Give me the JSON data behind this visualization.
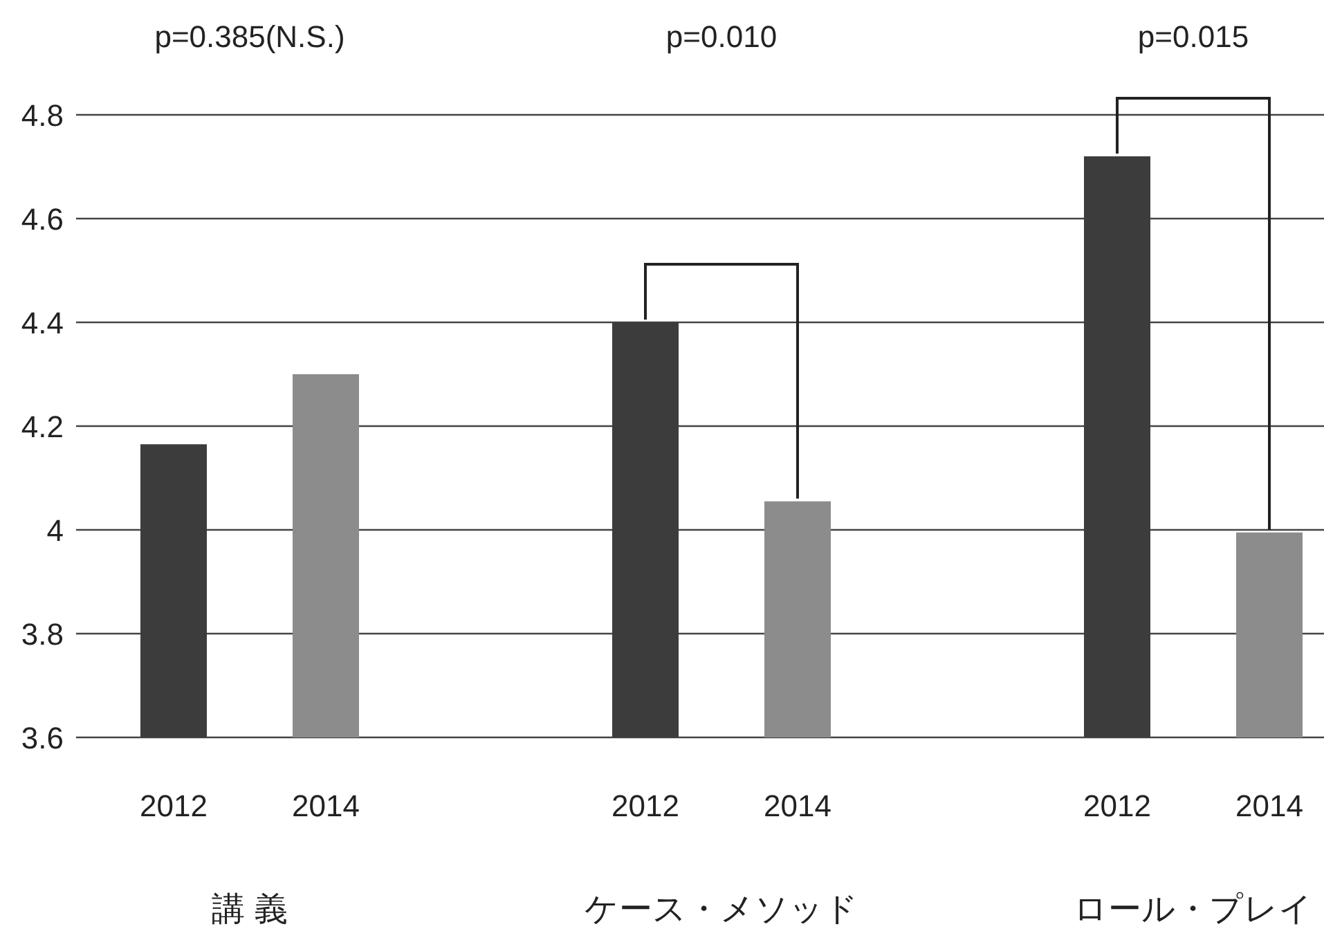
{
  "chart_data": {
    "type": "bar",
    "categories": [
      "講 義",
      "ケース・メソッド",
      "ロール・プレイ"
    ],
    "series": [
      {
        "name": "2012",
        "color": "#3c3c3c",
        "values": [
          4.165,
          4.4,
          4.72
        ]
      },
      {
        "name": "2014",
        "color": "#8c8c8c",
        "values": [
          4.3,
          4.055,
          3.995
        ]
      }
    ],
    "ylim": [
      3.6,
      4.8
    ],
    "yticks": [
      3.6,
      3.8,
      {
        "value": 4,
        "label": "4"
      },
      4.2,
      4.4,
      4.6,
      4.8
    ],
    "grid": "y",
    "legend": false,
    "annotations": [
      "p=0.385(N.S.)",
      "p=0.010",
      "p=0.015"
    ]
  }
}
